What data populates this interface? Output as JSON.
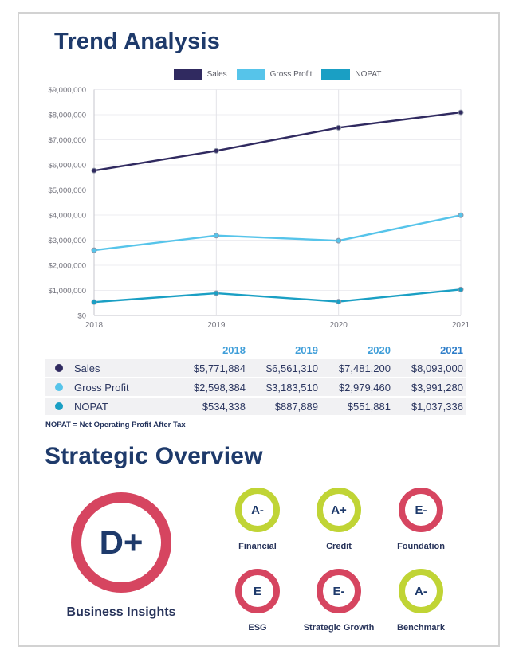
{
  "page": {
    "trend_title": "Trend Analysis",
    "strategic_title": "Strategic Overview"
  },
  "colors": {
    "navy": "#1e3a6b",
    "sales": "#302a60",
    "gross_profit": "#56c4ea",
    "nopat": "#1a9fc4",
    "red": "#d64560",
    "lime": "#c0d435",
    "axis_text": "#72727c",
    "hgrid": "#ededf1",
    "vgrid": "#e3e3e8",
    "axis_line": "#c6c6cc",
    "marker_stroke": "#9097a8"
  },
  "chart_data": {
    "type": "line",
    "title": "Trend Analysis",
    "x": [
      "2018",
      "2019",
      "2020",
      "2021"
    ],
    "series": [
      {
        "name": "Sales",
        "color_key": "sales",
        "values": [
          5771884,
          6561310,
          7481200,
          8093000
        ]
      },
      {
        "name": "Gross Profit",
        "color_key": "gross_profit",
        "values": [
          2598384,
          3183510,
          2979460,
          3991280
        ]
      },
      {
        "name": "NOPAT",
        "color_key": "nopat",
        "values": [
          534338,
          887889,
          551881,
          1037336
        ]
      }
    ],
    "ylim": [
      0,
      9000000
    ],
    "ytick_step": 1000000,
    "ytick_prefix": "$",
    "grid": true,
    "legend_position": "top"
  },
  "table": {
    "year_columns": [
      {
        "label": "2018",
        "color": "#3f9ed9"
      },
      {
        "label": "2019",
        "color": "#3f9ed9"
      },
      {
        "label": "2020",
        "color": "#3f9ed9"
      },
      {
        "label": "2021",
        "color": "#2f7ec9"
      }
    ],
    "rows": [
      {
        "label": "Sales",
        "color_key": "sales",
        "values": [
          "$5,771,884",
          "$6,561,310",
          "$7,481,200",
          "$8,093,000"
        ]
      },
      {
        "label": "Gross Profit",
        "color_key": "gross_profit",
        "values": [
          "$2,598,384",
          "$3,183,510",
          "$2,979,460",
          "$3,991,280"
        ]
      },
      {
        "label": "NOPAT",
        "color_key": "nopat",
        "values": [
          "$534,338",
          "$887,889",
          "$551,881",
          "$1,037,336"
        ]
      }
    ],
    "footnote": "NOPAT = Net Operating Profit After Tax"
  },
  "grades": {
    "main": {
      "grade": "D+",
      "label": "Business Insights",
      "color_key": "red"
    },
    "items": [
      {
        "grade": "A-",
        "label": "Financial",
        "color_key": "lime",
        "row": 0,
        "col": 0
      },
      {
        "grade": "A+",
        "label": "Credit",
        "color_key": "lime",
        "row": 0,
        "col": 1
      },
      {
        "grade": "E-",
        "label": "Foundation",
        "color_key": "red",
        "row": 0,
        "col": 2
      },
      {
        "grade": "E",
        "label": "ESG",
        "color_key": "red",
        "row": 1,
        "col": 0
      },
      {
        "grade": "E-",
        "label": "Strategic Growth",
        "color_key": "red",
        "row": 1,
        "col": 1
      },
      {
        "grade": "A-",
        "label": "Benchmark",
        "color_key": "lime",
        "row": 1,
        "col": 2
      }
    ]
  }
}
